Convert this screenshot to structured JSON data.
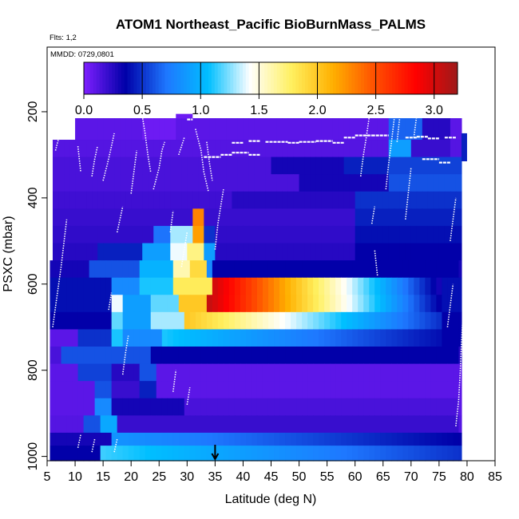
{
  "chart_data": {
    "type": "heatmap",
    "title": "ATOM1 Northeast_Pacific BioBurnMass_PALMS",
    "flights_label": "Flts: 1,2",
    "date_label": "MMDD: 0729,0801",
    "xlabel": "Latitude (deg N)",
    "ylabel": "PSXC (mbar)",
    "xlim": [
      5,
      85
    ],
    "ylim": [
      1010,
      50
    ],
    "y_reversed": true,
    "x_ticks": [
      5,
      10,
      15,
      20,
      25,
      30,
      35,
      40,
      45,
      50,
      55,
      60,
      65,
      70,
      75,
      80,
      85
    ],
    "y_ticks": [
      200,
      400,
      600,
      800,
      1000
    ],
    "colorbar": {
      "range": [
        0,
        3.2
      ],
      "ticks": [
        "0.0",
        "0.5",
        "1.0",
        "1.5",
        "2.0",
        "2.5",
        "3.0"
      ],
      "tick_values": [
        0,
        0.5,
        1.0,
        1.5,
        2.0,
        2.5,
        3.0
      ],
      "colors": [
        "#7f1fff",
        "#0000a8",
        "#1e78ff",
        "#00bfff",
        "#ffffff",
        "#fff060",
        "#ffb000",
        "#ff5000",
        "#ff0000",
        "#9e1a1a"
      ]
    },
    "highlight_latitude": 35,
    "x_step": 1,
    "layers": [
      {
        "p_top": 215,
        "p_bot": 265,
        "x0": 10,
        "x1": 79,
        "base": 0.1,
        "anoms": [
          {
            "lo": 22,
            "hi": 28,
            "v": 0.05
          },
          {
            "lo": 66,
            "hi": 72,
            "v": 0.65
          },
          {
            "lo": 72,
            "hi": 77,
            "v": 0.25
          }
        ]
      },
      {
        "p_top": 265,
        "p_bot": 305,
        "x0": 6,
        "x1": 79,
        "base": 0.12,
        "anoms": [
          {
            "lo": 66,
            "hi": 70,
            "v": 0.9
          },
          {
            "lo": 70,
            "hi": 77,
            "v": 0.2
          }
        ]
      },
      {
        "p_top": 305,
        "p_bot": 345,
        "x0": 6,
        "x1": 79,
        "base": 0.15,
        "anoms": [
          {
            "lo": 45,
            "hi": 58,
            "v": 0.3
          },
          {
            "lo": 58,
            "hi": 66,
            "v": 0.45
          },
          {
            "lo": 66,
            "hi": 79,
            "v": 0.55
          }
        ]
      },
      {
        "p_top": 345,
        "p_bot": 385,
        "x0": 6,
        "x1": 79,
        "base": 0.15,
        "anoms": [
          {
            "lo": 50,
            "hi": 66,
            "v": 0.3
          },
          {
            "lo": 66,
            "hi": 79,
            "v": 0.6
          }
        ]
      },
      {
        "p_top": 385,
        "p_bot": 425,
        "x0": 6,
        "x1": 79,
        "base": 0.18,
        "anoms": [
          {
            "lo": 38,
            "hi": 60,
            "v": 0.25
          },
          {
            "lo": 60,
            "hi": 79,
            "v": 0.5
          }
        ]
      },
      {
        "p_top": 425,
        "p_bot": 465,
        "x0": 6,
        "x1": 79,
        "base": 0.2,
        "anoms": [
          {
            "lo": 31,
            "hi": 33,
            "v": 2.3
          },
          {
            "lo": 60,
            "hi": 79,
            "v": 0.45
          }
        ]
      },
      {
        "p_top": 465,
        "p_bot": 505,
        "x0": 6,
        "x1": 79,
        "base": 0.22,
        "anoms": [
          {
            "lo": 24,
            "hi": 27,
            "v": 0.7
          },
          {
            "lo": 27,
            "hi": 31,
            "v": 1.3
          },
          {
            "lo": 31,
            "hi": 33,
            "v": 2.2
          },
          {
            "lo": 33,
            "hi": 35,
            "v": 0.5
          },
          {
            "lo": 60,
            "hi": 79,
            "v": 0.4
          }
        ]
      },
      {
        "p_top": 505,
        "p_bot": 545,
        "x0": 6,
        "x1": 79,
        "base": 0.25,
        "anoms": [
          {
            "lo": 14,
            "hi": 22,
            "v": 0.45
          },
          {
            "lo": 22,
            "hi": 27,
            "v": 0.9
          },
          {
            "lo": 27,
            "hi": 30,
            "v": 1.4
          },
          {
            "lo": 30,
            "hi": 33,
            "v": 1.7
          },
          {
            "lo": 33,
            "hi": 35,
            "v": 0.9
          },
          {
            "lo": 60,
            "hi": 79,
            "v": 0.35
          }
        ]
      },
      {
        "p_top": 545,
        "p_bot": 585,
        "x0": 5.5,
        "x1": 79,
        "base": 0.3,
        "anoms": [
          {
            "lo": 13,
            "hi": 22,
            "v": 0.6
          },
          {
            "lo": 22,
            "hi": 28,
            "v": 1.0
          },
          {
            "lo": 28,
            "hi": 31,
            "v": 1.6
          },
          {
            "lo": 31,
            "hi": 34,
            "v": 1.9
          },
          {
            "lo": 34,
            "hi": 35,
            "v": 0.8
          },
          {
            "lo": 35,
            "hi": 79,
            "v": 0.35
          }
        ]
      },
      {
        "p_top": 585,
        "p_bot": 625,
        "x0": 5.5,
        "x1": 79,
        "base": 0.4,
        "grad": {
          "x0": 35,
          "x1": 75,
          "v0": 3.0,
          "v1": 0.3
        },
        "anoms": [
          {
            "lo": 17,
            "hi": 22,
            "v": 0.8
          },
          {
            "lo": 22,
            "hi": 28,
            "v": 1.1
          },
          {
            "lo": 28,
            "hi": 35,
            "v": 1.8
          }
        ]
      },
      {
        "p_top": 625,
        "p_bot": 665,
        "x0": 5.5,
        "x1": 79,
        "base": 0.4,
        "grad": {
          "x0": 34,
          "x1": 75,
          "v0": 3.05,
          "v1": 0.35
        },
        "anoms": [
          {
            "lo": 17,
            "hi": 19,
            "v": 1.4
          },
          {
            "lo": 19,
            "hi": 24,
            "v": 0.9
          },
          {
            "lo": 24,
            "hi": 29,
            "v": 1.2
          },
          {
            "lo": 29,
            "hi": 34,
            "v": 2.0
          }
        ]
      },
      {
        "p_top": 665,
        "p_bot": 705,
        "x0": 5.5,
        "x1": 79,
        "base": 0.35,
        "grad": {
          "x0": 30,
          "x1": 75,
          "v0": 2.0,
          "v1": 0.5
        },
        "anoms": [
          {
            "lo": 17,
            "hi": 19,
            "v": 1.2
          },
          {
            "lo": 19,
            "hi": 24,
            "v": 0.9
          },
          {
            "lo": 24,
            "hi": 30,
            "v": 1.3
          }
        ]
      },
      {
        "p_top": 705,
        "p_bot": 745,
        "x0": 5.5,
        "x1": 79,
        "base": 0.35,
        "grad": {
          "x0": 26,
          "x1": 75,
          "v0": 1.1,
          "v1": 0.4
        },
        "anoms": [
          {
            "lo": 5.5,
            "hi": 11,
            "v": 0.1
          },
          {
            "lo": 11,
            "hi": 17,
            "v": 0.5
          },
          {
            "lo": 17,
            "hi": 19,
            "v": 1.1
          },
          {
            "lo": 19,
            "hi": 26,
            "v": 0.8
          }
        ]
      },
      {
        "p_top": 745,
        "p_bot": 785,
        "x0": 5.5,
        "x1": 79,
        "base": 0.25,
        "anoms": [
          {
            "lo": 5.5,
            "hi": 8,
            "v": 0.15
          },
          {
            "lo": 8,
            "hi": 24,
            "v": 0.6
          },
          {
            "lo": 24,
            "hi": 79,
            "v": 0.35
          }
        ]
      },
      {
        "p_top": 785,
        "p_bot": 825,
        "x0": 5.5,
        "x1": 79,
        "base": 0.1,
        "anoms": [
          {
            "lo": 11,
            "hi": 17,
            "v": 0.55
          },
          {
            "lo": 17,
            "hi": 22,
            "v": 0.25
          },
          {
            "lo": 22,
            "hi": 25,
            "v": 0.6
          }
        ]
      },
      {
        "p_top": 825,
        "p_bot": 865,
        "x0": 5.5,
        "x1": 79,
        "base": 0.1,
        "anoms": [
          {
            "lo": 14,
            "hi": 17,
            "v": 0.6
          },
          {
            "lo": 17,
            "hi": 22,
            "v": 0.2
          },
          {
            "lo": 22,
            "hi": 25,
            "v": 0.45
          }
        ]
      },
      {
        "p_top": 865,
        "p_bot": 905,
        "x0": 5.5,
        "x1": 79,
        "base": 0.1,
        "anoms": [
          {
            "lo": 14,
            "hi": 17,
            "v": 0.8
          },
          {
            "lo": 17,
            "hi": 30,
            "v": 0.3
          },
          {
            "lo": 30,
            "hi": 79,
            "v": 0.15
          }
        ]
      },
      {
        "p_top": 905,
        "p_bot": 945,
        "x0": 5.5,
        "x1": 79,
        "base": 0.12,
        "anoms": [
          {
            "lo": 12,
            "hi": 15,
            "v": 0.6
          },
          {
            "lo": 15,
            "hi": 18,
            "v": 0.95
          },
          {
            "lo": 18,
            "hi": 79,
            "v": 0.2
          }
        ]
      },
      {
        "p_top": 945,
        "p_bot": 975,
        "x0": 5.5,
        "x1": 79,
        "base": 0.3,
        "grad": {
          "x0": 17,
          "x1": 79,
          "v0": 0.85,
          "v1": 0.35
        }
      },
      {
        "p_top": 975,
        "p_bot": 1010,
        "x0": 5.5,
        "x1": 79,
        "base": 0.35,
        "grad": {
          "x0": 15,
          "x1": 79,
          "v0": 1.15,
          "v1": 0.5
        }
      }
    ],
    "notches": [
      {
        "p_top": 205,
        "p_bot": 215,
        "x0": 28,
        "x1": 31,
        "v": 0.05
      },
      {
        "p_top": 250,
        "p_bot": 315,
        "x0": 79,
        "x1": 80,
        "v": 0.45
      }
    ],
    "flight_tracks": [
      {
        "pts": [
          [
            6.5,
            290
          ],
          [
            7.0,
            265
          ]
        ]
      },
      {
        "pts": [
          [
            6.0,
            700
          ],
          [
            7.5,
            560
          ],
          [
            8.5,
            450
          ]
        ]
      },
      {
        "pts": [
          [
            10.5,
            280
          ],
          [
            11.0,
            340
          ]
        ]
      },
      {
        "pts": [
          [
            13.0,
            350
          ],
          [
            13.5,
            310
          ],
          [
            14.0,
            280
          ]
        ]
      },
      {
        "pts": [
          [
            15.0,
            360
          ],
          [
            15.8,
            320
          ],
          [
            16.5,
            280
          ],
          [
            17.0,
            250
          ]
        ]
      },
      {
        "pts": [
          [
            17.5,
            480
          ],
          [
            18.5,
            420
          ]
        ]
      },
      {
        "pts": [
          [
            20.0,
            390
          ],
          [
            20.5,
            340
          ],
          [
            21.0,
            290
          ]
        ]
      },
      {
        "pts": [
          [
            22.0,
            210
          ],
          [
            22.5,
            250
          ],
          [
            23.0,
            300
          ],
          [
            23.5,
            340
          ]
        ]
      },
      {
        "pts": [
          [
            24.0,
            380
          ],
          [
            25.0,
            330
          ],
          [
            25.5,
            290
          ],
          [
            26.0,
            270
          ]
        ]
      },
      {
        "pts": [
          [
            27.0,
            480
          ],
          [
            27.5,
            430
          ]
        ]
      },
      {
        "pts": [
          [
            28.5,
            300
          ],
          [
            29.5,
            260
          ]
        ]
      },
      {
        "pts": [
          [
            29.0,
            560
          ],
          [
            29.5,
            520
          ],
          [
            30.0,
            480
          ]
        ]
      },
      {
        "pts": [
          [
            31.5,
            240
          ],
          [
            32.5,
            290
          ],
          [
            33.0,
            340
          ],
          [
            33.8,
            385
          ]
        ]
      },
      {
        "pts": [
          [
            33.5,
            270
          ],
          [
            34.0,
            320
          ],
          [
            34.5,
            360
          ]
        ]
      },
      {
        "pts": [
          [
            35.0,
            520
          ],
          [
            35.5,
            460
          ],
          [
            36.0,
            420
          ],
          [
            36.5,
            380
          ]
        ]
      },
      {
        "pts": [
          [
            61.0,
            350
          ],
          [
            61.5,
            300
          ],
          [
            62.0,
            260
          ],
          [
            62.5,
            215
          ]
        ]
      },
      {
        "pts": [
          [
            63.0,
            460
          ],
          [
            63.5,
            420
          ]
        ]
      },
      {
        "pts": [
          [
            64.0,
            580
          ],
          [
            63.5,
            520
          ]
        ]
      },
      {
        "pts": [
          [
            65.5,
            380
          ],
          [
            66.0,
            320
          ],
          [
            66.5,
            270
          ],
          [
            67.0,
            215
          ]
        ]
      },
      {
        "pts": [
          [
            67.5,
            270
          ],
          [
            68.0,
            210
          ]
        ]
      },
      {
        "pts": [
          [
            69.0,
            450
          ],
          [
            69.5,
            390
          ],
          [
            70.0,
            330
          ]
        ]
      },
      {
        "pts": [
          [
            70.5,
            260
          ],
          [
            71.0,
            210
          ]
        ]
      },
      {
        "pts": [
          [
            77.0,
            500
          ],
          [
            77.5,
            450
          ],
          [
            78.0,
            400
          ]
        ]
      },
      {
        "pts": [
          [
            18.5,
            810
          ],
          [
            19.0,
            760
          ],
          [
            19.5,
            720
          ]
        ]
      },
      {
        "pts": [
          [
            16.0,
            660
          ],
          [
            16.5,
            620
          ]
        ]
      },
      {
        "pts": [
          [
            10.5,
            980
          ],
          [
            11.0,
            950
          ]
        ]
      },
      {
        "pts": [
          [
            13.0,
            990
          ],
          [
            13.5,
            960
          ]
        ]
      },
      {
        "pts": [
          [
            17.0,
            990
          ],
          [
            17.5,
            960
          ]
        ]
      },
      {
        "pts": [
          [
            27.5,
            850
          ],
          [
            28.0,
            800
          ]
        ]
      },
      {
        "pts": [
          [
            30.0,
            880
          ],
          [
            30.5,
            840
          ]
        ]
      },
      {
        "pts": [
          [
            78.0,
            930
          ],
          [
            78.5,
            870
          ],
          [
            78.8,
            800
          ],
          [
            79.0,
            740
          ],
          [
            79.2,
            690
          ],
          [
            79.5,
            650
          ]
        ]
      },
      {
        "pts": [
          [
            76.5,
            700
          ],
          [
            77.0,
            650
          ],
          [
            77.5,
            600
          ]
        ]
      }
    ],
    "altitude_levels": [
      {
        "x0": 30,
        "x1": 31,
        "p": 218
      },
      {
        "x0": 38,
        "x1": 40,
        "p": 272
      },
      {
        "x0": 41,
        "x1": 43,
        "p": 268
      },
      {
        "x0": 44,
        "x1": 48,
        "p": 270
      },
      {
        "x0": 48,
        "x1": 50,
        "p": 272
      },
      {
        "x0": 50,
        "x1": 53,
        "p": 270
      },
      {
        "x0": 53,
        "x1": 56,
        "p": 268
      },
      {
        "x0": 56,
        "x1": 58,
        "p": 272
      },
      {
        "x0": 58,
        "x1": 60,
        "p": 260
      },
      {
        "x0": 60,
        "x1": 63,
        "p": 255
      },
      {
        "x0": 63,
        "x1": 66,
        "p": 255
      },
      {
        "x0": 69,
        "x1": 71,
        "p": 260
      },
      {
        "x0": 71,
        "x1": 73,
        "p": 258
      },
      {
        "x0": 73,
        "x1": 75,
        "p": 262
      },
      {
        "x0": 76,
        "x1": 78,
        "p": 260
      },
      {
        "x0": 75,
        "x1": 77,
        "p": 318
      },
      {
        "x0": 72,
        "x1": 75,
        "p": 310
      },
      {
        "x0": 33,
        "x1": 36,
        "p": 305
      },
      {
        "x0": 36,
        "x1": 38,
        "p": 300
      },
      {
        "x0": 38,
        "x1": 41,
        "p": 295
      },
      {
        "x0": 41,
        "x1": 43,
        "p": 300
      }
    ]
  }
}
